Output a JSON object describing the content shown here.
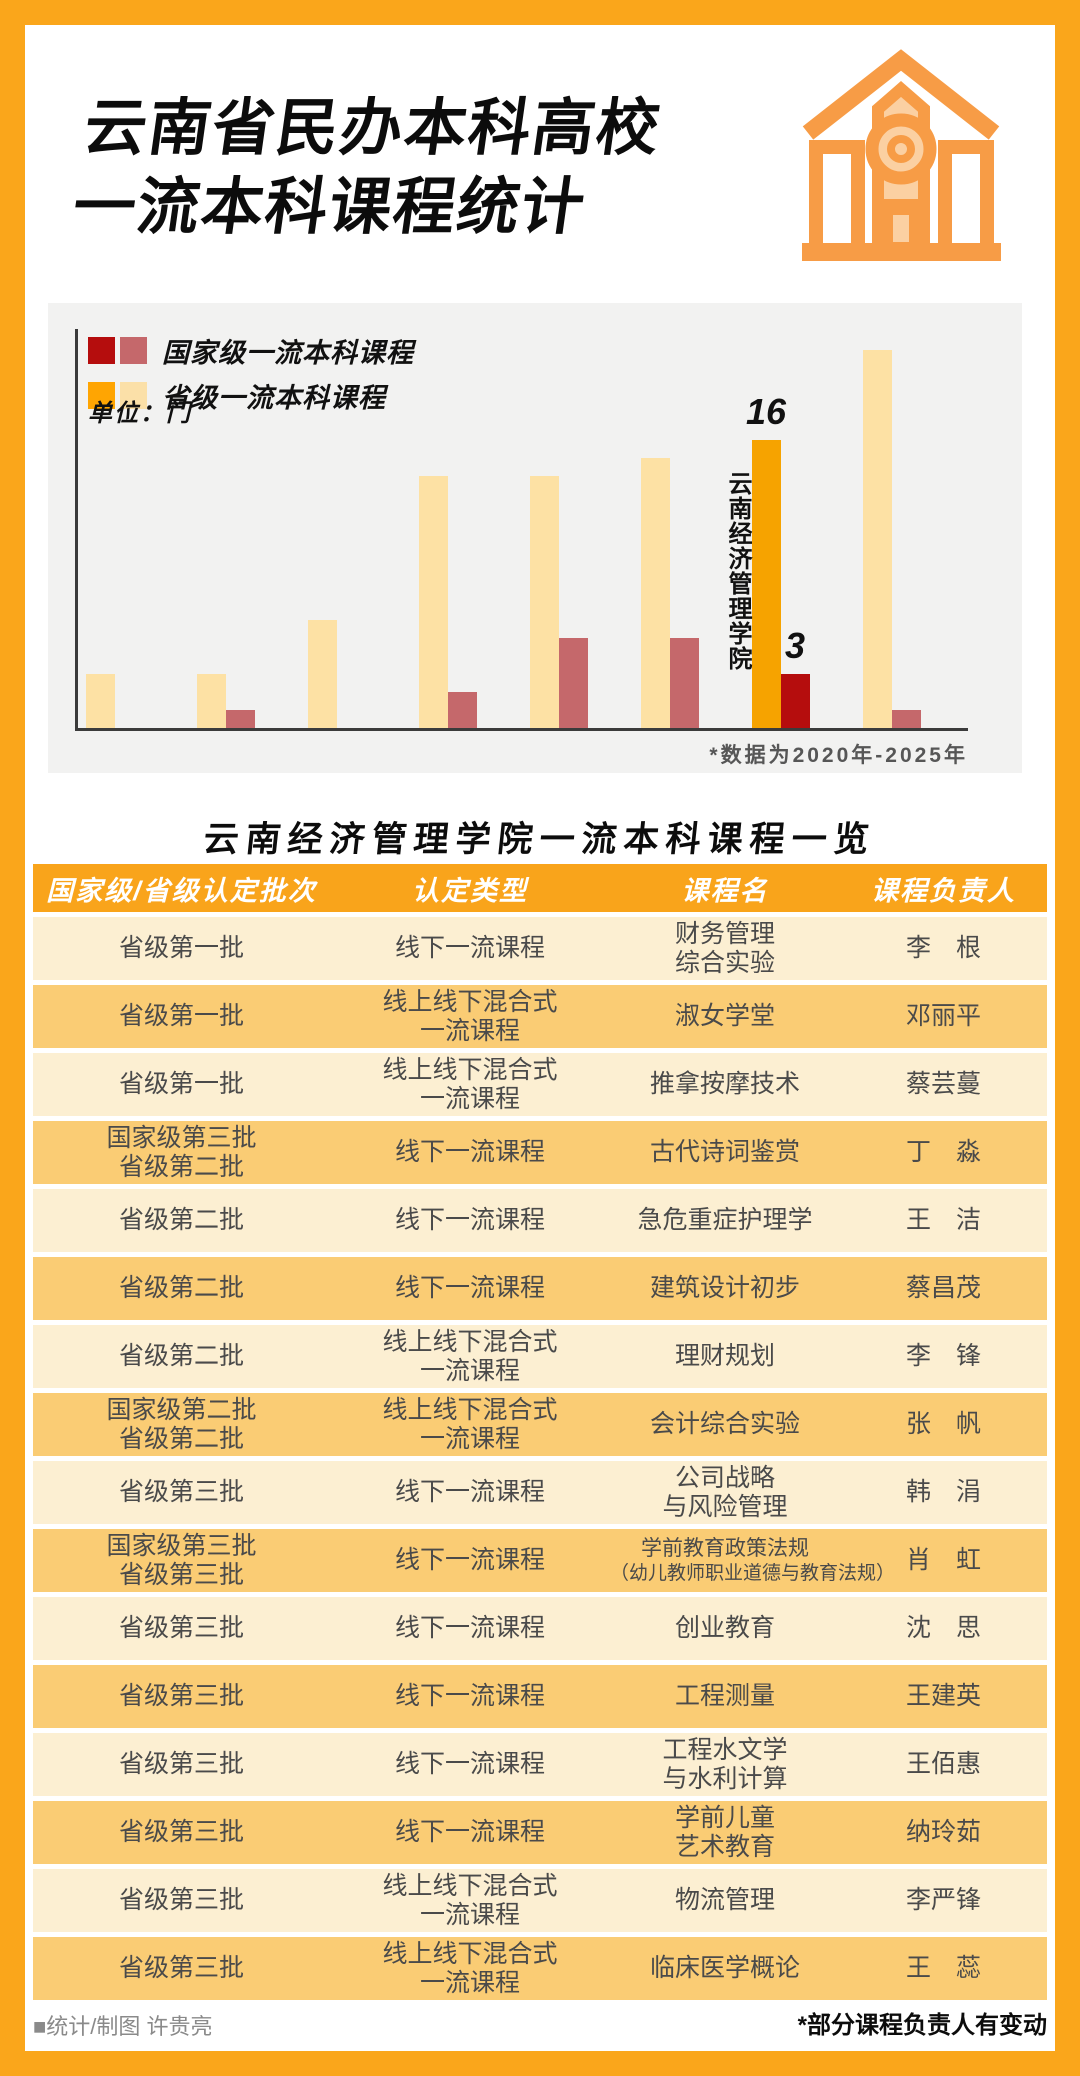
{
  "poster": {
    "title_lines": [
      "云南省民办本科高校",
      "一流本科课程统计"
    ]
  },
  "chart": {
    "legend": [
      {
        "label": "国家级一流本科课程",
        "swatch_dark": "#B50D0D",
        "swatch_light": "#C5686B"
      },
      {
        "label": "省级一流本科课程",
        "swatch_dark": "#FFA502",
        "swatch_light": "#FBE0A8"
      }
    ],
    "unit_label": "单位：门",
    "note": "*数据为2020年-2025年"
  },
  "chart_data": {
    "type": "bar",
    "title": "云南省民办本科高校一流本科课程统计",
    "unit": "门",
    "categories": [
      "",
      "",
      "",
      "",
      "",
      "",
      "云南经济管理学院",
      ""
    ],
    "series": [
      {
        "name": "省级一流本科课程",
        "values": [
          3,
          3,
          6,
          14,
          14,
          15,
          16,
          21
        ],
        "color": "#FDE1A4",
        "highlight_color": "#F6A300"
      },
      {
        "name": "国家级一流本科课程",
        "values": [
          0,
          1,
          0,
          2,
          5,
          5,
          3,
          1
        ],
        "color": "#C5686B",
        "highlight_color": "#B50D0D"
      }
    ],
    "highlight_index": 6,
    "highlight_labels": {
      "category": "云南经济管理学院",
      "province": "16",
      "national": "3"
    },
    "ylim": [
      0,
      22
    ],
    "grid": false,
    "legend_position": "top-left",
    "note": "*数据为2020年-2025年"
  },
  "table": {
    "title": "云南经济管理学院一流本科课程一览",
    "headers": [
      "国家级/省级认定批次",
      "认定类型",
      "课程名",
      "课程负责人"
    ],
    "rows": [
      [
        "省级第一批",
        "线下一流课程",
        "财务管理\n综合实验",
        "李　根"
      ],
      [
        "省级第一批",
        "线上线下混合式\n一流课程",
        "淑女学堂",
        "邓丽平"
      ],
      [
        "省级第一批",
        "线上线下混合式\n一流课程",
        "推拿按摩技术",
        "蔡芸蔓"
      ],
      [
        "国家级第三批\n省级第二批",
        "线下一流课程",
        "古代诗词鉴赏",
        "丁　淼"
      ],
      [
        "省级第二批",
        "线下一流课程",
        "急危重症护理学",
        "王　洁"
      ],
      [
        "省级第二批",
        "线下一流课程",
        "建筑设计初步",
        "蔡昌茂"
      ],
      [
        "省级第二批",
        "线上线下混合式\n一流课程",
        "理财规划",
        "李　锋"
      ],
      [
        "国家级第二批\n省级第二批",
        "线上线下混合式\n一流课程",
        "会计综合实验",
        "张　帆"
      ],
      [
        "省级第三批",
        "线下一流课程",
        "公司战略\n与风险管理",
        "韩　涓"
      ],
      [
        "国家级第三批\n省级第三批",
        "线下一流课程",
        "学前教育政策法规\n（幼儿教师职业道德与教育法规）",
        "肖　虹"
      ],
      [
        "省级第三批",
        "线下一流课程",
        "创业教育",
        "沈　思"
      ],
      [
        "省级第三批",
        "线下一流课程",
        "工程测量",
        "王建英"
      ],
      [
        "省级第三批",
        "线下一流课程",
        "工程水文学\n与水利计算",
        "王佰惠"
      ],
      [
        "省级第三批",
        "线下一流课程",
        "学前儿童\n艺术教育",
        "纳玲茹"
      ],
      [
        "省级第三批",
        "线上线下混合式\n一流课程",
        "物流管理",
        "李严锋"
      ],
      [
        "省级第三批",
        "线上线下混合式\n一流课程",
        "临床医学概论",
        "王　蕊"
      ]
    ]
  },
  "footer": {
    "credit": "■统计/制图 许贵亮",
    "note": "*部分课程负责人有变动"
  },
  "theme": {
    "frame_orange": "#FAA61B",
    "header_orange": "#F9A41B",
    "row_light": "#FCEFD2",
    "row_dark": "#FACC74",
    "panel_gray": "#F2F2F1",
    "icon_orange": "#F79C46",
    "icon_fill": "#FBD0A2"
  }
}
